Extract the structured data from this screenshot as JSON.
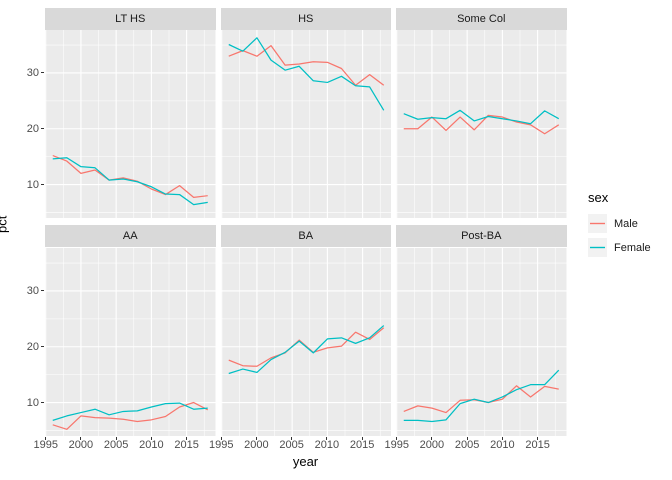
{
  "figure": {
    "y_axis_title": "pct",
    "x_axis_title": "year"
  },
  "legend": {
    "title": "sex",
    "items": [
      {
        "label": "Male",
        "color": "#F8766D"
      },
      {
        "label": "Female",
        "color": "#00BFC4"
      }
    ]
  },
  "chart_data": {
    "type": "line",
    "title": "",
    "xlabel": "year",
    "ylabel": "pct",
    "facet_variable_levels": [
      "LT HS",
      "HS",
      "Some Col",
      "AA",
      "BA",
      "Post-BA"
    ],
    "x": [
      1996,
      1998,
      2000,
      2002,
      2004,
      2006,
      2008,
      2010,
      2012,
      2014,
      2016,
      2018
    ],
    "x_ticks": [
      1995,
      2000,
      2005,
      2010,
      2015
    ],
    "x_minor_ticks": [
      1997.5,
      2002.5,
      2007.5,
      2012.5,
      2017.5
    ],
    "y_ticks": [
      10,
      20,
      30
    ],
    "y_minor_ticks": [
      5,
      15,
      25,
      35
    ],
    "xlim": [
      1994.9,
      2019.1
    ],
    "ylim": [
      4.0,
      37.7
    ],
    "grid": "on",
    "legend_position": "right",
    "panel_bg": "#EBEBEB",
    "strip_bg": "#D9D9D9",
    "grid_color": "#FFFFFF",
    "facets": [
      {
        "label": "LT HS",
        "series": [
          {
            "name": "Male",
            "color": "#F8766D",
            "values": [
              15.2,
              14.2,
              12.0,
              12.6,
              10.8,
              11.2,
              10.6,
              9.2,
              8.2,
              9.8,
              7.7,
              8.0
            ]
          },
          {
            "name": "Female",
            "color": "#00BFC4",
            "values": [
              14.6,
              14.8,
              13.2,
              13.0,
              10.8,
              11.0,
              10.5,
              9.6,
              8.3,
              8.2,
              6.4,
              6.8
            ]
          }
        ]
      },
      {
        "label": "HS",
        "series": [
          {
            "name": "Male",
            "color": "#F8766D",
            "values": [
              33.0,
              34.0,
              33.0,
              34.9,
              31.4,
              31.6,
              32.0,
              31.9,
              30.8,
              27.8,
              29.7,
              27.8
            ]
          },
          {
            "name": "Female",
            "color": "#00BFC4",
            "values": [
              35.1,
              33.9,
              36.3,
              32.3,
              30.5,
              31.2,
              28.6,
              28.3,
              29.4,
              27.7,
              27.5,
              23.3
            ]
          }
        ]
      },
      {
        "label": "Some Col",
        "series": [
          {
            "name": "Male",
            "color": "#F8766D",
            "values": [
              20.0,
              20.0,
              22.1,
              19.7,
              22.1,
              19.8,
              22.4,
              22.1,
              21.2,
              20.7,
              19.1,
              20.7
            ]
          },
          {
            "name": "Female",
            "color": "#00BFC4",
            "values": [
              22.7,
              21.7,
              22.0,
              21.8,
              23.3,
              21.4,
              22.2,
              21.8,
              21.4,
              20.9,
              23.2,
              21.8
            ]
          }
        ]
      },
      {
        "label": "AA",
        "series": [
          {
            "name": "Male",
            "color": "#F8766D",
            "values": [
              6.0,
              5.2,
              7.6,
              7.3,
              7.2,
              7.0,
              6.6,
              6.9,
              7.5,
              9.2,
              10.0,
              8.7
            ]
          },
          {
            "name": "Female",
            "color": "#00BFC4",
            "values": [
              6.8,
              7.6,
              8.2,
              8.8,
              7.8,
              8.4,
              8.5,
              9.2,
              9.8,
              9.9,
              8.8,
              9.0
            ]
          }
        ]
      },
      {
        "label": "BA",
        "series": [
          {
            "name": "Male",
            "color": "#F8766D",
            "values": [
              17.6,
              16.6,
              16.5,
              18.0,
              18.9,
              21.2,
              19.0,
              19.8,
              20.1,
              22.6,
              21.3,
              23.4
            ]
          },
          {
            "name": "Female",
            "color": "#00BFC4",
            "values": [
              15.2,
              16.0,
              15.4,
              17.7,
              19.0,
              21.0,
              18.9,
              21.4,
              21.6,
              20.6,
              21.6,
              23.8
            ]
          }
        ]
      },
      {
        "label": "Post-BA",
        "series": [
          {
            "name": "Male",
            "color": "#F8766D",
            "values": [
              8.4,
              9.4,
              9.0,
              8.2,
              10.4,
              10.5,
              10.0,
              10.6,
              13.0,
              11.0,
              12.9,
              12.4
            ]
          },
          {
            "name": "Female",
            "color": "#00BFC4",
            "values": [
              6.8,
              6.8,
              6.6,
              6.9,
              9.8,
              10.6,
              10.0,
              11.0,
              12.3,
              13.2,
              13.2,
              15.8
            ]
          }
        ]
      }
    ]
  }
}
